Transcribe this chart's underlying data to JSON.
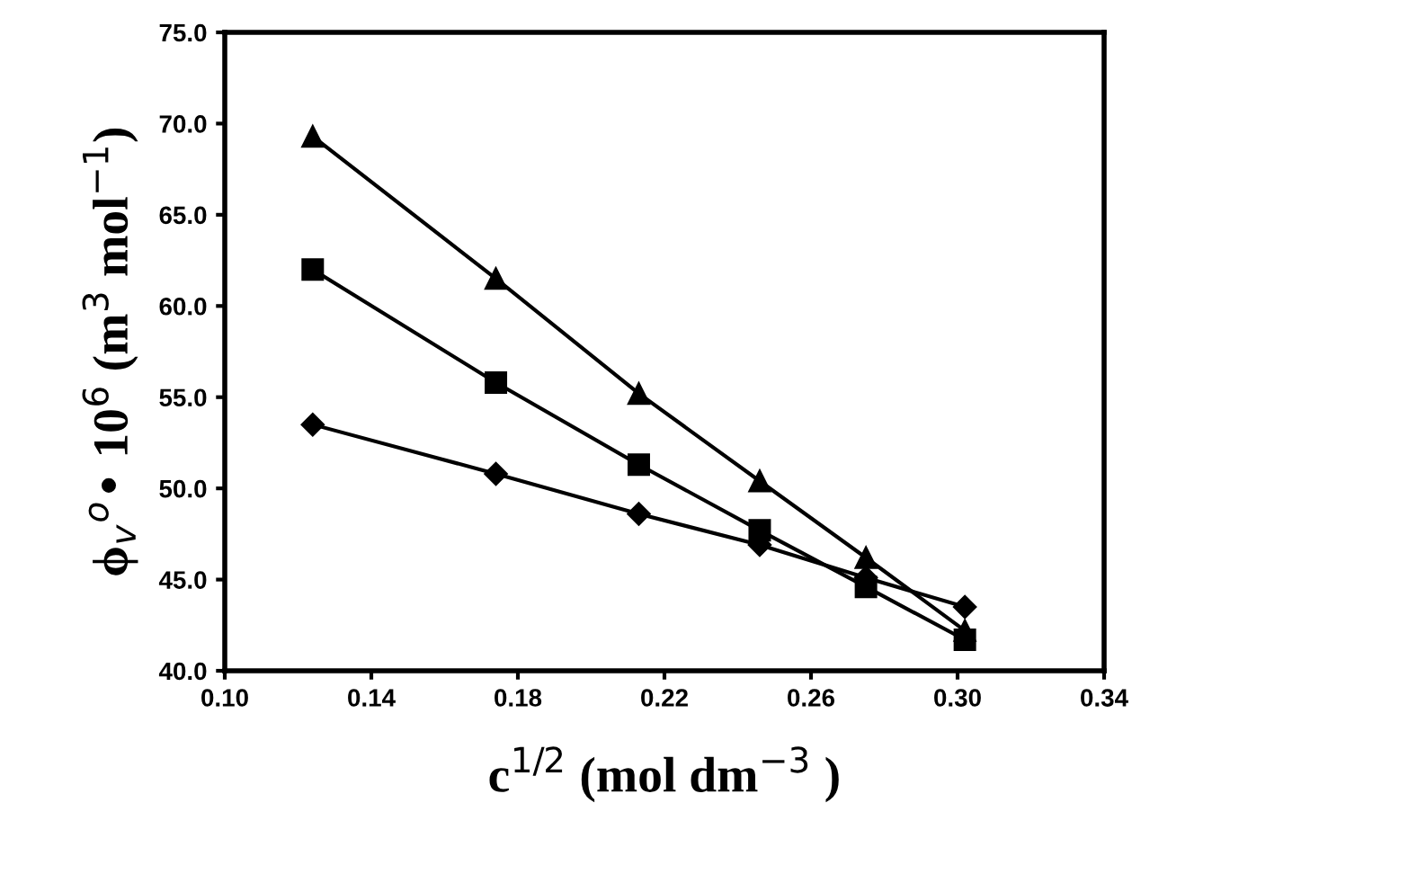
{
  "chart_data": {
    "type": "line",
    "xlabel": "c$^{1/2}$ (mol dm$^{−3}$ )",
    "ylabel": "ϕ$_{v}$$^{o}$• 10$^{6}$ (m$^{3}$ mol$^{−1}$)",
    "x": [
      0.124,
      0.174,
      0.213,
      0.246,
      0.275,
      0.302
    ],
    "series": [
      {
        "color": "#000000",
        "marker": "triangle",
        "values": [
          69.3,
          61.5,
          55.2,
          50.4,
          46.2,
          42.2
        ]
      },
      {
        "color": "#000000",
        "marker": "square",
        "values": [
          62.0,
          55.8,
          51.3,
          47.7,
          44.6,
          41.7
        ]
      },
      {
        "color": "#000000",
        "marker": "diamond",
        "values": [
          53.5,
          50.8,
          48.6,
          46.9,
          45.1,
          43.5
        ]
      }
    ],
    "xlim": [
      0.1,
      0.34
    ],
    "ylim": [
      40,
      75
    ],
    "xticks": [
      {
        "value": 0.1,
        "label": "0.10"
      },
      0.14,
      0.18,
      0.22,
      0.26,
      {
        "value": 0.3,
        "label": "0.30"
      },
      0.34
    ],
    "yticks": [
      {
        "value": 40,
        "label": "40.0"
      },
      {
        "value": 45,
        "label": "45.0"
      },
      {
        "value": 50,
        "label": "50.0"
      },
      {
        "value": 55,
        "label": "55.0"
      },
      {
        "value": 60,
        "label": "60.0"
      },
      {
        "value": 65,
        "label": "65.0"
      },
      {
        "value": 70,
        "label": "70.0"
      },
      {
        "value": 75,
        "label": "75.0"
      }
    ],
    "grid": false,
    "legend": false,
    "line_style": "solid"
  }
}
